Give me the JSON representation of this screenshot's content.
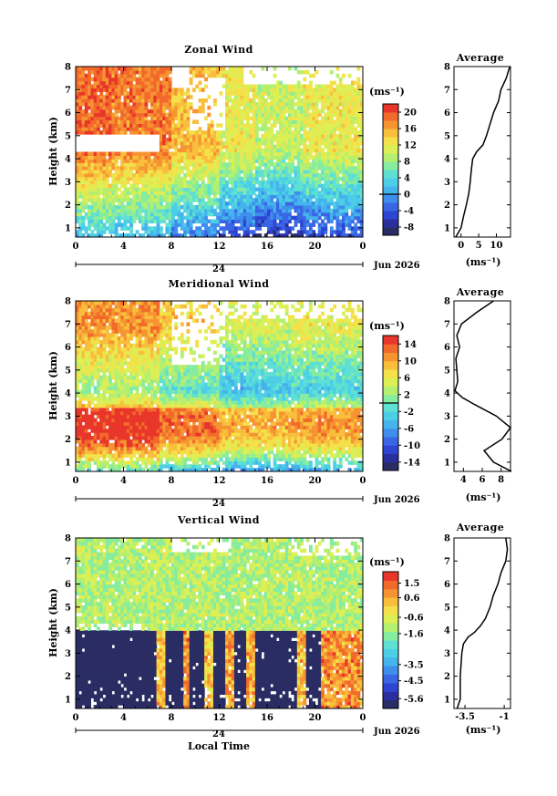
{
  "chart_data": [
    {
      "type": "heatmap",
      "title": "Zonal Wind",
      "ylabel": "Height (km)",
      "xlabel": "",
      "unit": "(ms⁻¹)",
      "date_label": "Jun 2026",
      "day_label": "24",
      "x_ticks": [
        "0",
        "4",
        "8",
        "12",
        "16",
        "20",
        "0"
      ],
      "x_range_hours": [
        0,
        24
      ],
      "y_ticks": [
        "1",
        "2",
        "3",
        "4",
        "5",
        "6",
        "7",
        "8"
      ],
      "y_range_km": [
        0.6,
        8
      ],
      "colorbar_ticks": [
        "20",
        "16",
        "12",
        "8",
        "4",
        "0",
        "-4",
        "-8"
      ],
      "colorbar_range": [
        -10,
        22
      ],
      "field": {
        "surface_value": -2,
        "gradient_per_km": 4.5,
        "top_cap": 15,
        "segments": [
          {
            "t_start": 0,
            "t_end": 3,
            "offset": 4
          },
          {
            "t_start": 3,
            "t_end": 8,
            "offset": 3
          },
          {
            "t_start": 8,
            "t_end": 12,
            "offset": 0
          },
          {
            "t_start": 12,
            "t_end": 15,
            "offset": -3
          },
          {
            "t_start": 15,
            "t_end": 19,
            "offset": -5
          },
          {
            "t_start": 19,
            "t_end": 24,
            "offset": -3
          }
        ]
      },
      "average_profile": {
        "title": "Average",
        "xlabel": "(ms⁻¹)",
        "x_ticks": [
          0,
          5,
          10
        ],
        "x_range": [
          -2,
          14
        ],
        "height_km": [
          0.6,
          1,
          1.5,
          2,
          2.5,
          3,
          3.5,
          4,
          4.3,
          4.6,
          5,
          5.5,
          6,
          6.5,
          7,
          7.5,
          8
        ],
        "value": [
          -1.5,
          0,
          0.7,
          1.5,
          2.2,
          2.6,
          2.9,
          3.3,
          4.4,
          6.2,
          7.2,
          8.2,
          9.2,
          10.6,
          11.3,
          12.8,
          13.8
        ]
      }
    },
    {
      "type": "heatmap",
      "title": "Meridional Wind",
      "ylabel": "Height (km)",
      "xlabel": "",
      "unit": "(ms⁻¹)",
      "date_label": "Jun 2026",
      "day_label": "24",
      "x_ticks": [
        "0",
        "4",
        "8",
        "12",
        "16",
        "20",
        "0"
      ],
      "x_range_hours": [
        0,
        24
      ],
      "y_ticks": [
        "1",
        "2",
        "3",
        "4",
        "5",
        "6",
        "7",
        "8"
      ],
      "y_range_km": [
        0.6,
        8
      ],
      "colorbar_ticks": [
        "14",
        "10",
        "6",
        "2",
        "-2",
        "-6",
        "-10",
        "-14"
      ],
      "colorbar_range": [
        -16,
        16
      ],
      "field": {
        "lower_jet_core_km": 2.7,
        "lower_jet_value": 13,
        "minimum_km": 4.1,
        "minimum_value": -1,
        "upper_value": 6,
        "segments": [
          {
            "t_start": 0,
            "t_end": 7,
            "offset": 3
          },
          {
            "t_start": 7,
            "t_end": 12,
            "offset": 0
          },
          {
            "t_start": 12,
            "t_end": 18,
            "offset": -3
          },
          {
            "t_start": 18,
            "t_end": 24,
            "offset": -2
          }
        ]
      },
      "average_profile": {
        "title": "Average",
        "xlabel": "(ms⁻¹)",
        "x_ticks": [
          4,
          6,
          8
        ],
        "x_range": [
          3,
          9
        ],
        "height_km": [
          0.6,
          1,
          1.5,
          2,
          2.5,
          3,
          3.5,
          3.8,
          4.1,
          4.5,
          5,
          5.5,
          6,
          6.5,
          7,
          7.5,
          8
        ],
        "value": [
          9.1,
          7.2,
          6.2,
          8.1,
          9.0,
          7.5,
          5.2,
          3.9,
          3.1,
          3.4,
          3.3,
          3.2,
          3.6,
          3.3,
          3.8,
          5.4,
          7.2
        ]
      }
    },
    {
      "type": "heatmap",
      "title": "Vertical Wind",
      "ylabel": "Height (km)",
      "xlabel": "Local Time",
      "unit": "(ms⁻¹)",
      "date_label": "Jun 2026",
      "day_label": "24",
      "x_ticks": [
        "0",
        "4",
        "8",
        "12",
        "16",
        "20",
        "0"
      ],
      "x_range_hours": [
        0,
        24
      ],
      "y_ticks": [
        "1",
        "2",
        "3",
        "4",
        "5",
        "6",
        "7",
        "8"
      ],
      "y_range_km": [
        0.6,
        8
      ],
      "colorbar_ticks": [
        "1.5",
        "0.6",
        "-0.6",
        "-1.6",
        "-3.5",
        "-4.5",
        "-5.6"
      ],
      "colorbar_range": [
        -6.2,
        2.2
      ],
      "field": {
        "lower_layer_top_km": 4,
        "upper_value": -1.2,
        "lower_value": -6,
        "lower_gaps": [
          {
            "t_start": 6.8,
            "t_end": 7.6,
            "value": 0.4
          },
          {
            "t_start": 9.0,
            "t_end": 9.6,
            "value": 0.8
          },
          {
            "t_start": 10.8,
            "t_end": 11.4,
            "value": 0.2
          },
          {
            "t_start": 12.6,
            "t_end": 13.2,
            "value": 0.6
          },
          {
            "t_start": 14.2,
            "t_end": 15.0,
            "value": 0.5
          },
          {
            "t_start": 18.6,
            "t_end": 19.2,
            "value": 0.4
          },
          {
            "t_start": 20.5,
            "t_end": 24,
            "value": 0.9
          }
        ]
      },
      "average_profile": {
        "title": "Average",
        "xlabel": "(ms⁻¹)",
        "x_ticks": [
          -3.5,
          -1.0
        ],
        "x_range": [
          -4.2,
          -0.6
        ],
        "height_km": [
          0.6,
          1,
          2,
          3,
          3.4,
          3.7,
          3.9,
          4.2,
          4.5,
          5,
          5.5,
          6,
          6.5,
          7,
          7.5,
          8
        ],
        "value": [
          -4.0,
          -3.8,
          -3.8,
          -3.7,
          -3.6,
          -3.3,
          -2.9,
          -2.5,
          -2.2,
          -1.9,
          -1.7,
          -1.4,
          -1.2,
          -0.9,
          -0.8,
          -0.9
        ]
      }
    }
  ]
}
